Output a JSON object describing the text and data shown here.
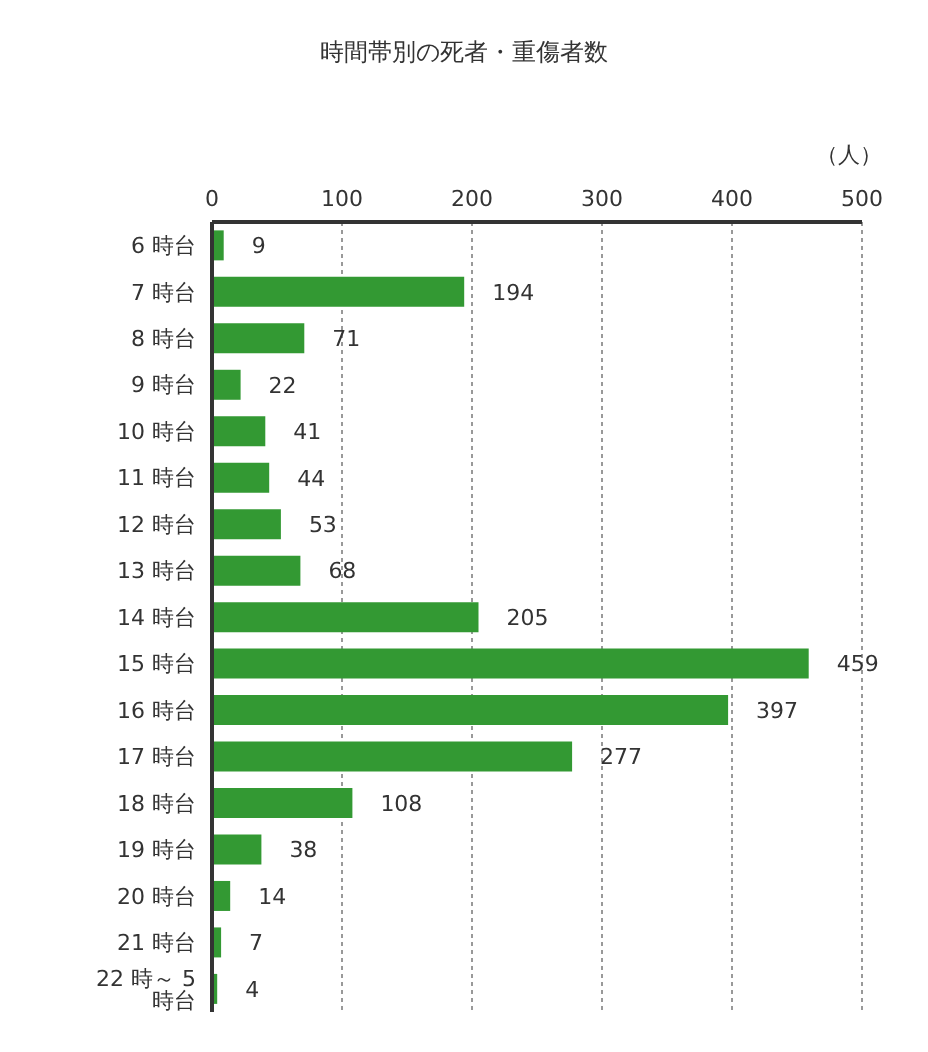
{
  "chart_data": {
    "type": "bar",
    "orientation": "horizontal",
    "title": "時間帯別の死者・重傷者数",
    "xlabel": "（人）",
    "categories": [
      "6 時台",
      "7 時台",
      "8 時台",
      "9 時台",
      "10 時台",
      "11 時台",
      "12 時台",
      "13 時台",
      "14 時台",
      "15 時台",
      "16 時台",
      "17 時台",
      "18 時台",
      "19 時台",
      "20 時台",
      "21 時台",
      "22 時～ 5 時台"
    ],
    "values": [
      9,
      194,
      71,
      22,
      41,
      44,
      53,
      68,
      205,
      459,
      397,
      277,
      108,
      38,
      14,
      7,
      4
    ],
    "color": "#339933",
    "xlim": [
      0,
      500
    ],
    "xticks": [
      0,
      100,
      200,
      300,
      400,
      500
    ],
    "grid": "x",
    "data_labels": true
  }
}
